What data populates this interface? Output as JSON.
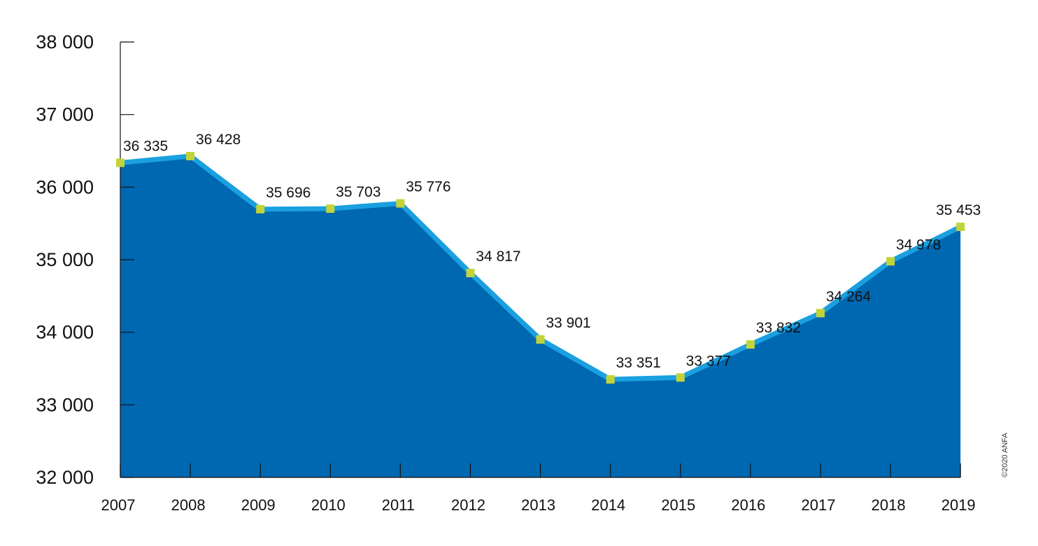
{
  "chart_data": {
    "type": "area",
    "x": [
      "2007",
      "2008",
      "2009",
      "2010",
      "2011",
      "2012",
      "2013",
      "2014",
      "2015",
      "2016",
      "2017",
      "2018",
      "2019"
    ],
    "series": [
      {
        "values": [
          36335,
          36428,
          35696,
          35703,
          35776,
          34817,
          33901,
          33351,
          33377,
          33832,
          34264,
          34978,
          35453
        ]
      }
    ],
    "data_labels": [
      "36 335",
      "36 428",
      "35 696",
      "35 703",
      "35 776",
      "34 817",
      "33 901",
      "33 351",
      "33 377",
      "33 832",
      "34 264",
      "34 978",
      "35 453"
    ],
    "highlight_index": 12,
    "ylim": [
      32000,
      38000
    ],
    "yticks": [
      32000,
      33000,
      34000,
      35000,
      36000,
      37000,
      38000
    ],
    "ytick_labels": [
      "32 000",
      "33 000",
      "34 000",
      "35 000",
      "36 000",
      "37 000",
      "38 000"
    ],
    "title": "",
    "xlabel": "",
    "ylabel": "",
    "grid": false,
    "legend": "none",
    "colors": {
      "area_fill": "#0067b1",
      "line": "#1aa0e0",
      "marker": "#c3d43a",
      "highlight_label": "#e2231a",
      "text": "#111111",
      "axis": "#111111"
    }
  },
  "credit": "©2020 ANFA"
}
